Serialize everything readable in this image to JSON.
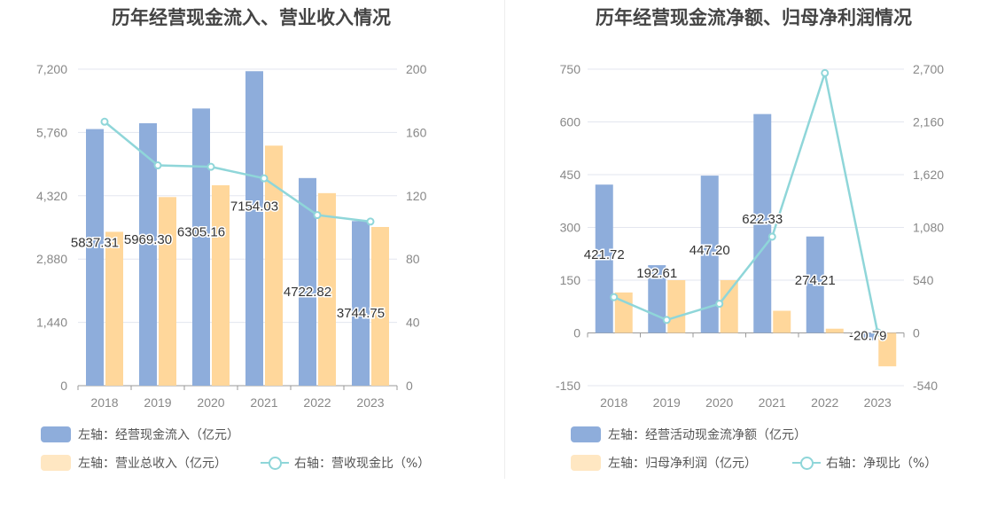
{
  "colors": {
    "bar_primary": "#8eaddb",
    "bar_secondary": "#ffd79b",
    "line": "#8fd6d9",
    "grid": "#e3e6ef",
    "axis_text": "#888888",
    "label_text": "#333333"
  },
  "chart_data": [
    {
      "type": "bar",
      "title": "历年经营现金流入、营业收入情况",
      "categories": [
        "2018",
        "2019",
        "2020",
        "2021",
        "2022",
        "2023"
      ],
      "left_axis": {
        "ticks": [
          "0",
          "1,440",
          "2,880",
          "4,320",
          "5,760",
          "7,200"
        ],
        "min": 0,
        "max": 7200
      },
      "right_axis": {
        "ticks": [
          "0",
          "40",
          "80",
          "120",
          "160",
          "200"
        ],
        "min": 0,
        "max": 200
      },
      "series": [
        {
          "name": "左轴：经营现金流入（亿元）",
          "type": "bar",
          "axis": "left",
          "values": [
            5837.31,
            5969.3,
            6305.16,
            7154.03,
            4722.82,
            3744.75
          ],
          "labels": [
            "5837.31",
            "5969.30",
            "6305.16",
            "7154.03",
            "4722.82",
            "3744.75"
          ]
        },
        {
          "name": "左轴：营业总收入（亿元）",
          "type": "bar",
          "axis": "left",
          "values": [
            3500,
            4290,
            4560,
            5460,
            4380,
            3610
          ]
        },
        {
          "name": "右轴：营收现金比（%）",
          "type": "line",
          "axis": "right",
          "values": [
            166.8,
            139.2,
            138.3,
            131.0,
            107.8,
            103.7
          ]
        }
      ]
    },
    {
      "type": "bar",
      "title": "历年经营现金流净额、归母净利润情况",
      "categories": [
        "2018",
        "2019",
        "2020",
        "2021",
        "2022",
        "2023"
      ],
      "left_axis": {
        "ticks": [
          "-150",
          "0",
          "150",
          "300",
          "450",
          "600",
          "750"
        ],
        "min": -150,
        "max": 750
      },
      "right_axis": {
        "ticks": [
          "-540",
          "0",
          "540",
          "1,080",
          "1,620",
          "2,160",
          "2,700"
        ],
        "min": -540,
        "max": 2700
      },
      "series": [
        {
          "name": "左轴：经营活动现金流净额（亿元）",
          "type": "bar",
          "axis": "left",
          "values": [
            421.72,
            192.61,
            447.2,
            622.33,
            274.21,
            -20.79
          ],
          "labels": [
            "421.72",
            "192.61",
            "447.20",
            "622.33",
            "274.21",
            "-20.79"
          ]
        },
        {
          "name": "左轴：归母净利润（亿元）",
          "type": "bar",
          "axis": "left",
          "values": [
            115,
            150,
            150,
            63,
            12,
            -95
          ]
        },
        {
          "name": "右轴：净现比（%）",
          "type": "line",
          "axis": "right",
          "values": [
            366,
            133,
            298,
            985,
            2660,
            6
          ]
        }
      ]
    }
  ]
}
